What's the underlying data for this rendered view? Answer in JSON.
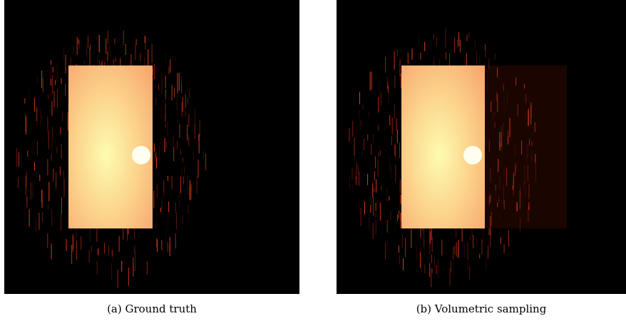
{
  "figure": {
    "subfigures": [
      {
        "caption": "(a) Ground truth"
      },
      {
        "caption": "(b) Volumetric sampling"
      }
    ]
  }
}
